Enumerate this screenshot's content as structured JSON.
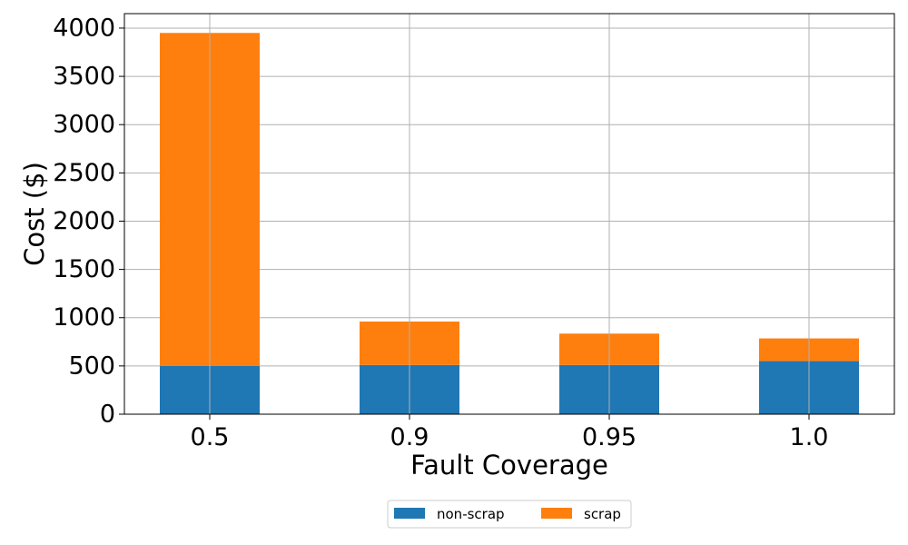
{
  "chart_data": {
    "type": "bar",
    "stacked": true,
    "categories": [
      "0.5",
      "0.9",
      "0.95",
      "1.0"
    ],
    "series": [
      {
        "name": "non-scrap",
        "color": "#1f77b4",
        "values": [
          500,
          510,
          510,
          550
        ]
      },
      {
        "name": "scrap",
        "color": "#ff7f0e",
        "values": [
          3450,
          450,
          325,
          235
        ]
      }
    ],
    "xlabel": "Fault Coverage",
    "ylabel": "Cost ($)",
    "ylim": [
      0,
      4150
    ],
    "yticks": [
      "0",
      "500",
      "1000",
      "1500",
      "2000",
      "2500",
      "3000",
      "3500",
      "4000"
    ],
    "grid": true,
    "legend_position": "bottom-center"
  }
}
